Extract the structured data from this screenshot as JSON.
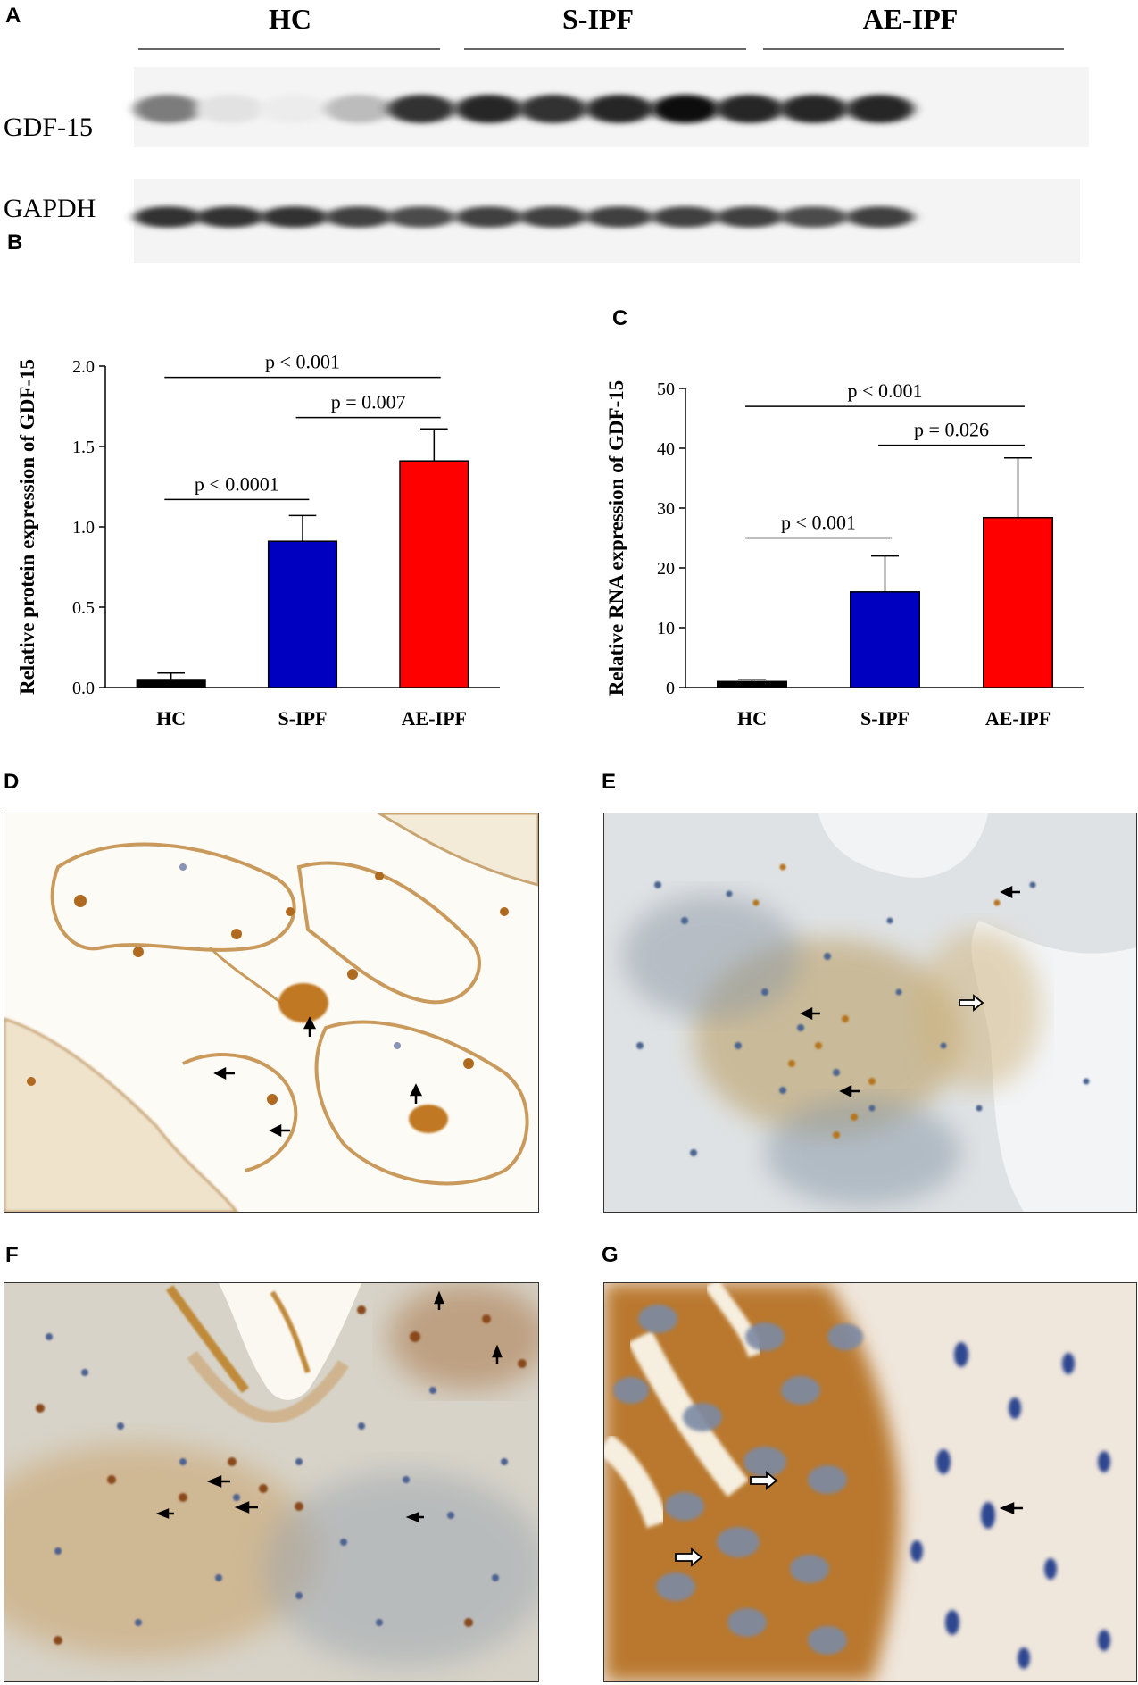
{
  "panel_labels": {
    "a": "A",
    "b": "B",
    "c": "C",
    "d": "D",
    "e": "E",
    "f": "F",
    "g": "G"
  },
  "blot": {
    "groups": [
      "HC",
      "S-IPF",
      "AE-IPF"
    ],
    "rows": [
      {
        "label": "GDF-15",
        "intensities": [
          0.55,
          0.12,
          0.08,
          0.28,
          0.85,
          0.9,
          0.85,
          0.9,
          1.0,
          0.9,
          0.9,
          0.9
        ]
      },
      {
        "label": "GAPDH",
        "intensities": [
          0.85,
          0.85,
          0.85,
          0.8,
          0.75,
          0.8,
          0.8,
          0.8,
          0.8,
          0.8,
          0.75,
          0.8
        ]
      }
    ]
  },
  "chart_data": [
    {
      "type": "bar",
      "categories": [
        "HC",
        "S-IPF",
        "AE-IPF"
      ],
      "values": [
        0.05,
        0.91,
        1.41
      ],
      "errors": [
        0.04,
        0.16,
        0.2
      ],
      "colors": [
        "#000000",
        "#0000c0",
        "#ff0000"
      ],
      "ylabel": "Relative protein expression of GDF-15",
      "ylim": [
        0,
        2.0
      ],
      "yticks": [
        "0.0",
        "0.5",
        "1.0",
        "1.5",
        "2.0"
      ],
      "ytick_values": [
        0,
        0.5,
        1.0,
        1.5,
        2.0
      ],
      "annotations": [
        {
          "text": "p < 0.0001",
          "from": 0,
          "to": 1,
          "level": 1.17
        },
        {
          "text": "p = 0.007",
          "from": 1,
          "to": 2,
          "level": 1.68
        },
        {
          "text": "p < 0.001",
          "from": 0,
          "to": 2,
          "level": 1.93
        }
      ]
    },
    {
      "type": "bar",
      "categories": [
        "HC",
        "S-IPF",
        "AE-IPF"
      ],
      "values": [
        1,
        16,
        28.4
      ],
      "errors": [
        0.3,
        6,
        10
      ],
      "colors": [
        "#000000",
        "#0000c0",
        "#ff0000"
      ],
      "ylabel": "Relative RNA expression of GDF-15",
      "ylim": [
        0,
        50
      ],
      "yticks": [
        "0",
        "10",
        "20",
        "30",
        "40",
        "50"
      ],
      "ytick_values": [
        0,
        10,
        20,
        30,
        40,
        50
      ],
      "annotations": [
        {
          "text": "p < 0.001",
          "from": 0,
          "to": 1,
          "level": 25
        },
        {
          "text": "p = 0.026",
          "from": 1,
          "to": 2,
          "level": 40.5
        },
        {
          "text": "p < 0.001",
          "from": 0,
          "to": 2,
          "level": 47
        }
      ]
    }
  ]
}
